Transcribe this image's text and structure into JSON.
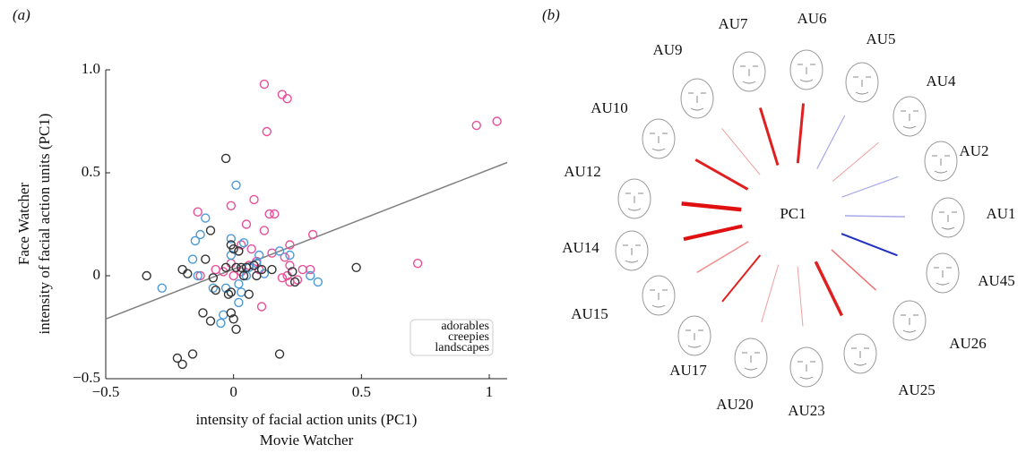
{
  "chart_data": {
    "type": "scatter",
    "panel_label": "(a)",
    "xlabel": [
      "intensity of facial action units (PC1)",
      "Movie Watcher"
    ],
    "ylabel": [
      "Face Watcher",
      "intensity of facial action units (PC1)"
    ],
    "xlim": [
      -0.5,
      1.07
    ],
    "ylim": [
      -0.5,
      1.0
    ],
    "xticks": [
      {
        "value": -0.5,
        "label": "−0.5"
      },
      0,
      0.5,
      1
    ],
    "yticks": [
      {
        "value": -0.5,
        "label": "−0.5"
      },
      0,
      0.5,
      {
        "value": 1,
        "label": "1.0"
      }
    ],
    "legend": "lower right",
    "fit": {
      "color": "#808080",
      "x": [
        -0.5,
        1.07
      ],
      "y": [
        -0.21,
        0.55
      ]
    },
    "series": [
      {
        "name": "adorables",
        "color": "#e8509a",
        "legend_color": "#9b1fa6",
        "x": [
          0.12,
          0.19,
          0.21,
          0.13,
          0.95,
          1.03,
          0.72,
          -0.14,
          -0.01,
          0.05,
          0.08,
          0.14,
          0.16,
          0.12,
          0.22,
          0.31,
          0.02,
          0.03,
          0.07,
          0.09,
          0.15,
          0.2,
          0.22,
          0.21,
          0.19,
          0.27,
          0.3,
          0.25,
          0.22,
          0.11,
          0,
          -0.01,
          0.06,
          0.03,
          -0.13,
          -0.07,
          -0.04,
          0.1
        ],
        "values": [
          0.93,
          0.88,
          0.86,
          0.7,
          0.73,
          0.75,
          0.06,
          0.31,
          0.34,
          0.25,
          0.37,
          0.3,
          0.3,
          0.22,
          0.15,
          0.2,
          0.12,
          0.15,
          0.13,
          0.07,
          0.11,
          0.09,
          0.05,
          0,
          -0.01,
          0.03,
          0.03,
          -0.02,
          -0.03,
          -0.15,
          0,
          0.06,
          0.05,
          0.02,
          0,
          0.03,
          0.02,
          0.03
        ]
      },
      {
        "name": "creepies",
        "color": "#4a9ad8",
        "legend_color": "#3a8fd6",
        "x": [
          0.01,
          -0.11,
          -0.13,
          -0.15,
          -0.01,
          0.04,
          -0.16,
          -0.14,
          -0.28,
          -0.08,
          -0.03,
          0.03,
          0.02,
          -0.04,
          -0.05,
          0.18,
          0.22,
          0.3,
          0.33,
          0.05,
          0.06,
          0.09,
          -0.01,
          0.02,
          0.1,
          0.12
        ],
        "values": [
          0.44,
          0.28,
          0.2,
          0.17,
          0.18,
          0.16,
          0.08,
          0,
          -0.06,
          -0.06,
          -0.06,
          -0.08,
          -0.13,
          -0.19,
          -0.23,
          0.12,
          0.1,
          0,
          -0.03,
          0,
          0.04,
          0.06,
          0.1,
          -0.04,
          0.1,
          0.01
        ]
      },
      {
        "name": "landscapes",
        "color": "#333333",
        "legend_color": "#111111",
        "x": [
          -0.03,
          -0.09,
          -0.01,
          0,
          0.02,
          -0.11,
          -0.2,
          -0.18,
          -0.34,
          -0.08,
          -0.07,
          -0.01,
          -0.02,
          0.06,
          -0.12,
          -0.09,
          -0.01,
          0,
          0.01,
          -0.16,
          -0.22,
          -0.2,
          0.18,
          0.48,
          0.15,
          0.23,
          0.24,
          0.01,
          0.03,
          0.05,
          0.08,
          0.09,
          0.11,
          0.04,
          -0.03
        ],
        "values": [
          0.57,
          0.22,
          0.15,
          0.13,
          0.12,
          0.08,
          0.03,
          0.01,
          0,
          -0.01,
          -0.07,
          -0.08,
          -0.09,
          -0.09,
          -0.18,
          -0.22,
          -0.18,
          -0.21,
          -0.26,
          -0.38,
          -0.4,
          -0.43,
          -0.38,
          0.04,
          0.03,
          0.02,
          -0.03,
          0.04,
          0.04,
          0.04,
          0.05,
          0,
          0.03,
          0,
          0.04
        ]
      }
    ]
  },
  "diagram": {
    "panel_label": "(b)",
    "center": "PC1",
    "nodes": [
      "AU6",
      "AU5",
      "AU4",
      "AU2",
      "AU1",
      "AU45",
      "AU26",
      "AU25",
      "AU23",
      "AU20",
      "AU17",
      "AU15",
      "AU14",
      "AU12",
      "AU10",
      "AU9",
      "AU7"
    ]
  }
}
